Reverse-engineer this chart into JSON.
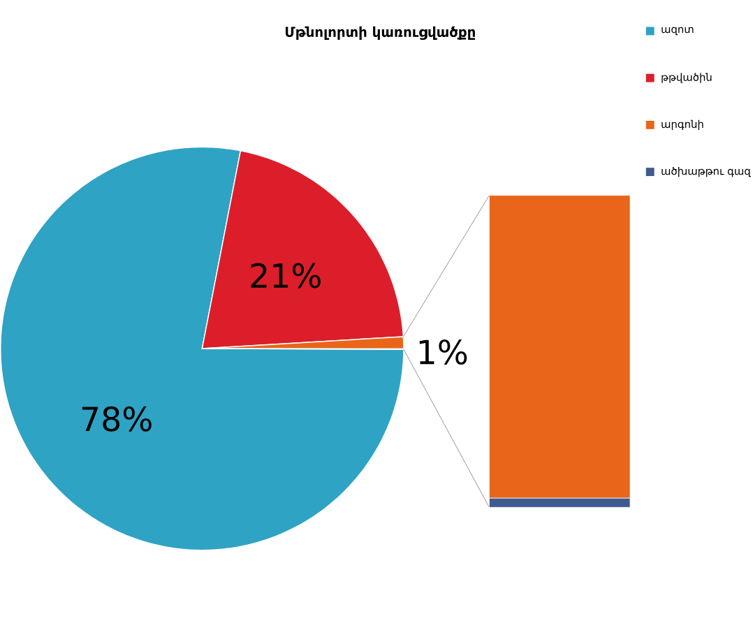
{
  "chart_data": {
    "type": "pie",
    "title": "Մթնոլորտի կառուցվածքը",
    "categories": [
      "ազոտ",
      "թթվածին",
      "արգոնի",
      "ածխաթթու գազ"
    ],
    "values": [
      78,
      21,
      0.97,
      0.03
    ],
    "colors": [
      "#2ea3c4",
      "#dc1e2a",
      "#e8651a",
      "#3f5a8e"
    ],
    "value_labels": [
      "78%",
      "21%",
      null,
      null
    ],
    "annotations": [
      "1%"
    ],
    "legend": "top right"
  }
}
